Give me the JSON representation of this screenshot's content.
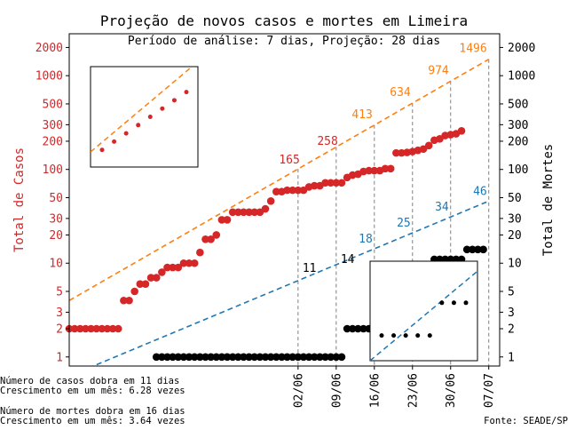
{
  "chart_data": {
    "type": "scatter",
    "title": "Projeção de novos casos e mortes em Limeira",
    "subtitle": "Período de análise: 7 dias, Projeção: 28 dias",
    "ylabel_left": "Total de Casos",
    "ylabel_right": "Total de Mortes",
    "y_scale": "log",
    "ylim": [
      0.8,
      2800
    ],
    "xlim": [
      "2020-04-21",
      "2020-07-09"
    ],
    "x_ticks": [
      {
        "date": "2020-06-02",
        "label": "02/06"
      },
      {
        "date": "2020-06-09",
        "label": "09/06"
      },
      {
        "date": "2020-06-16",
        "label": "16/06"
      },
      {
        "date": "2020-06-23",
        "label": "23/06"
      },
      {
        "date": "2020-06-30",
        "label": "30/06"
      },
      {
        "date": "2020-07-07",
        "label": "07/07"
      }
    ],
    "y_ticks": [
      {
        "value": 1,
        "label": "1"
      },
      {
        "value": 2,
        "label": "2"
      },
      {
        "value": 3,
        "label": "3"
      },
      {
        "value": 5,
        "label": "5"
      },
      {
        "value": 10,
        "label": "10"
      },
      {
        "value": 20,
        "label": "20"
      },
      {
        "value": 30,
        "label": "30"
      },
      {
        "value": 50,
        "label": "50"
      },
      {
        "value": 100,
        "label": "100"
      },
      {
        "value": 200,
        "label": "200"
      },
      {
        "value": 300,
        "label": "300"
      },
      {
        "value": 500,
        "label": "500"
      },
      {
        "value": 1000,
        "label": "1000"
      },
      {
        "value": 2000,
        "label": "2000"
      }
    ],
    "colors": {
      "cases": "#d62728",
      "deaths": "#000000",
      "cases_projection": "#ff7f0e",
      "deaths_projection": "#1f77b4",
      "vlines": "#808080"
    },
    "series": [
      {
        "key": "cases",
        "color": "#d62728",
        "points": [
          [
            "2020-04-21",
            2
          ],
          [
            "2020-04-22",
            2
          ],
          [
            "2020-04-23",
            2
          ],
          [
            "2020-04-24",
            2
          ],
          [
            "2020-04-25",
            2
          ],
          [
            "2020-04-26",
            2
          ],
          [
            "2020-04-27",
            2
          ],
          [
            "2020-04-28",
            2
          ],
          [
            "2020-04-29",
            2
          ],
          [
            "2020-04-30",
            2
          ],
          [
            "2020-05-01",
            4
          ],
          [
            "2020-05-02",
            4
          ],
          [
            "2020-05-03",
            5
          ],
          [
            "2020-05-04",
            6
          ],
          [
            "2020-05-05",
            6
          ],
          [
            "2020-05-06",
            7
          ],
          [
            "2020-05-07",
            7
          ],
          [
            "2020-05-08",
            8
          ],
          [
            "2020-05-09",
            9
          ],
          [
            "2020-05-10",
            9
          ],
          [
            "2020-05-11",
            9
          ],
          [
            "2020-05-12",
            10
          ],
          [
            "2020-05-13",
            10
          ],
          [
            "2020-05-14",
            10
          ],
          [
            "2020-05-15",
            13
          ],
          [
            "2020-05-16",
            18
          ],
          [
            "2020-05-17",
            18
          ],
          [
            "2020-05-18",
            20
          ],
          [
            "2020-05-19",
            29
          ],
          [
            "2020-05-20",
            29
          ],
          [
            "2020-05-21",
            35
          ],
          [
            "2020-05-22",
            35
          ],
          [
            "2020-05-23",
            35
          ],
          [
            "2020-05-24",
            35
          ],
          [
            "2020-05-25",
            35
          ],
          [
            "2020-05-26",
            35
          ],
          [
            "2020-05-27",
            38
          ],
          [
            "2020-05-28",
            46
          ],
          [
            "2020-05-29",
            58
          ],
          [
            "2020-05-30",
            58
          ],
          [
            "2020-05-31",
            60
          ],
          [
            "2020-06-01",
            60
          ],
          [
            "2020-06-02",
            60
          ],
          [
            "2020-06-03",
            60
          ],
          [
            "2020-06-04",
            65
          ],
          [
            "2020-06-05",
            67
          ],
          [
            "2020-06-06",
            67
          ],
          [
            "2020-06-07",
            72
          ],
          [
            "2020-06-08",
            72
          ],
          [
            "2020-06-09",
            72
          ],
          [
            "2020-06-10",
            72
          ],
          [
            "2020-06-11",
            82
          ],
          [
            "2020-06-12",
            87
          ],
          [
            "2020-06-13",
            89
          ],
          [
            "2020-06-14",
            95
          ],
          [
            "2020-06-15",
            97
          ],
          [
            "2020-06-16",
            97
          ],
          [
            "2020-06-17",
            97
          ],
          [
            "2020-06-18",
            102
          ],
          [
            "2020-06-19",
            102
          ],
          [
            "2020-06-20",
            150
          ],
          [
            "2020-06-21",
            150
          ],
          [
            "2020-06-22",
            152
          ],
          [
            "2020-06-23",
            155
          ],
          [
            "2020-06-24",
            160
          ],
          [
            "2020-06-25",
            165
          ],
          [
            "2020-06-26",
            180
          ],
          [
            "2020-06-27",
            205
          ],
          [
            "2020-06-28",
            212
          ],
          [
            "2020-06-29",
            230
          ],
          [
            "2020-06-30",
            235
          ],
          [
            "2020-07-01",
            240
          ],
          [
            "2020-07-02",
            258
          ]
        ]
      },
      {
        "key": "deaths",
        "color": "#000000",
        "points": [
          [
            "2020-05-07",
            1
          ],
          [
            "2020-05-08",
            1
          ],
          [
            "2020-05-09",
            1
          ],
          [
            "2020-05-10",
            1
          ],
          [
            "2020-05-11",
            1
          ],
          [
            "2020-05-12",
            1
          ],
          [
            "2020-05-13",
            1
          ],
          [
            "2020-05-14",
            1
          ],
          [
            "2020-05-15",
            1
          ],
          [
            "2020-05-16",
            1
          ],
          [
            "2020-05-17",
            1
          ],
          [
            "2020-05-18",
            1
          ],
          [
            "2020-05-19",
            1
          ],
          [
            "2020-05-20",
            1
          ],
          [
            "2020-05-21",
            1
          ],
          [
            "2020-05-22",
            1
          ],
          [
            "2020-05-23",
            1
          ],
          [
            "2020-05-24",
            1
          ],
          [
            "2020-05-25",
            1
          ],
          [
            "2020-05-26",
            1
          ],
          [
            "2020-05-27",
            1
          ],
          [
            "2020-05-28",
            1
          ],
          [
            "2020-05-29",
            1
          ],
          [
            "2020-05-30",
            1
          ],
          [
            "2020-05-31",
            1
          ],
          [
            "2020-06-01",
            1
          ],
          [
            "2020-06-02",
            1
          ],
          [
            "2020-06-03",
            1
          ],
          [
            "2020-06-04",
            1
          ],
          [
            "2020-06-05",
            1
          ],
          [
            "2020-06-06",
            1
          ],
          [
            "2020-06-07",
            1
          ],
          [
            "2020-06-08",
            1
          ],
          [
            "2020-06-09",
            1
          ],
          [
            "2020-06-10",
            1
          ],
          [
            "2020-06-11",
            2
          ],
          [
            "2020-06-12",
            2
          ],
          [
            "2020-06-13",
            2
          ],
          [
            "2020-06-14",
            2
          ],
          [
            "2020-06-15",
            2
          ],
          [
            "2020-06-16",
            2
          ],
          [
            "2020-06-17",
            2
          ],
          [
            "2020-06-18",
            3
          ],
          [
            "2020-06-19",
            3
          ],
          [
            "2020-06-20",
            3
          ],
          [
            "2020-06-21",
            3
          ],
          [
            "2020-06-22",
            3
          ],
          [
            "2020-06-23",
            4
          ],
          [
            "2020-06-24",
            4
          ],
          [
            "2020-06-25",
            4
          ],
          [
            "2020-06-26",
            8
          ],
          [
            "2020-06-27",
            11
          ],
          [
            "2020-06-28",
            11
          ],
          [
            "2020-06-29",
            11
          ],
          [
            "2020-06-30",
            11
          ],
          [
            "2020-07-01",
            11
          ],
          [
            "2020-07-02",
            11
          ],
          [
            "2020-07-03",
            14
          ],
          [
            "2020-07-04",
            14
          ],
          [
            "2020-07-05",
            14
          ],
          [
            "2020-07-06",
            14
          ]
        ]
      }
    ],
    "projections": [
      {
        "key": "cases_projection",
        "color": "#ff7f0e",
        "from": [
          "2020-04-21",
          4
        ],
        "to": [
          "2020-07-07",
          1496
        ]
      },
      {
        "key": "deaths_projection",
        "color": "#1f77b4",
        "from": [
          "2020-04-17",
          0.5
        ],
        "to": [
          "2020-07-07",
          46
        ]
      }
    ],
    "case_labels": [
      {
        "date": "2020-06-02",
        "text": "165"
      },
      {
        "date": "2020-06-09",
        "text": "258"
      },
      {
        "date": "2020-06-16",
        "text": "413"
      },
      {
        "date": "2020-06-23",
        "text": "634"
      },
      {
        "date": "2020-06-30",
        "text": "974"
      },
      {
        "date": "2020-07-07",
        "text": "1496"
      }
    ],
    "death_labels": [
      {
        "date": "2020-06-02",
        "text": "11"
      },
      {
        "date": "2020-06-09",
        "text": "14"
      },
      {
        "date": "2020-06-16",
        "text": "18"
      },
      {
        "date": "2020-06-23",
        "text": "25"
      },
      {
        "date": "2020-06-30",
        "text": "34"
      },
      {
        "date": "2020-07-07",
        "text": "46"
      }
    ],
    "inset_cases_points": [
      [
        0,
        1
      ],
      [
        1,
        2
      ],
      [
        2,
        3
      ],
      [
        3,
        4
      ],
      [
        4,
        5
      ],
      [
        5,
        6
      ],
      [
        6,
        7
      ],
      [
        7,
        8
      ]
    ],
    "inset_deaths_points": [
      [
        0,
        1
      ],
      [
        1,
        1
      ],
      [
        2,
        1
      ],
      [
        3,
        1
      ],
      [
        4,
        1
      ],
      [
        5,
        3
      ],
      [
        6,
        3
      ],
      [
        7,
        3
      ]
    ]
  },
  "footer": {
    "cases_doubling": "Número de casos dobra em 11 dias",
    "cases_growth": "Crescimento em um mês: 6.28 vezes",
    "deaths_doubling": "Número de mortes dobra em 16 dias",
    "deaths_growth": "Crescimento em um mês: 3.64 vezes",
    "source": "Fonte: SEADE/SP"
  }
}
